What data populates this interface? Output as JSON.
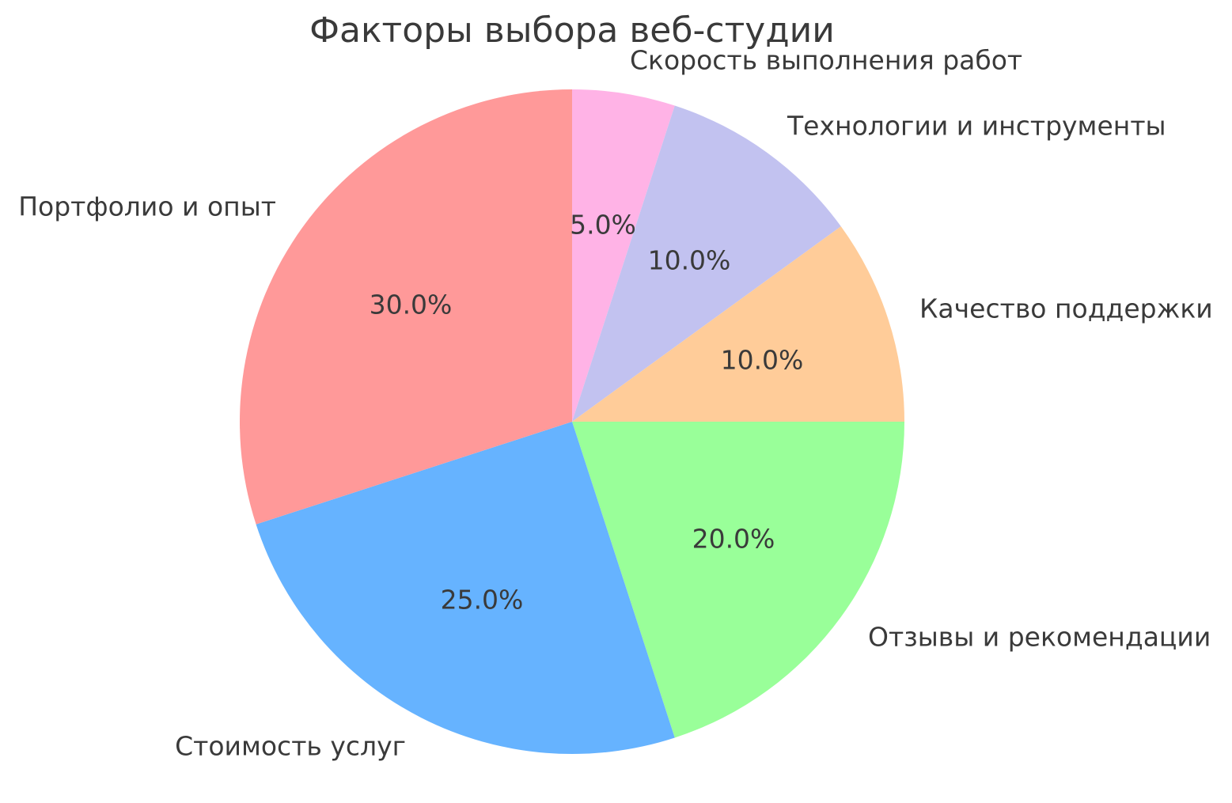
{
  "chart_data": {
    "type": "pie",
    "title": "Факторы выбора веб-студии",
    "slices": [
      {
        "label": "Скорость выполнения работ",
        "value": 5.0,
        "pct_label": "5.0%",
        "color": "#ffb3e6"
      },
      {
        "label": "Технологии и инструменты",
        "value": 10.0,
        "pct_label": "10.0%",
        "color": "#c2c2f0"
      },
      {
        "label": "Качество поддержки",
        "value": 10.0,
        "pct_label": "10.0%",
        "color": "#ffcc99"
      },
      {
        "label": "Отзывы и рекомендации",
        "value": 20.0,
        "pct_label": "20.0%",
        "color": "#99ff99"
      },
      {
        "label": "Стоимость услуг",
        "value": 25.0,
        "pct_label": "25.0%",
        "color": "#66b3ff"
      },
      {
        "label": "Портфолио и опыт",
        "value": 30.0,
        "pct_label": "30.0%",
        "color": "#ff9999"
      }
    ],
    "start_angle": "top",
    "direction": "clockwise",
    "legend": "none",
    "label_distance": 1.1,
    "pct_distance": 0.6,
    "text_color": "#3a3a3a",
    "background_color": "#ffffff"
  }
}
